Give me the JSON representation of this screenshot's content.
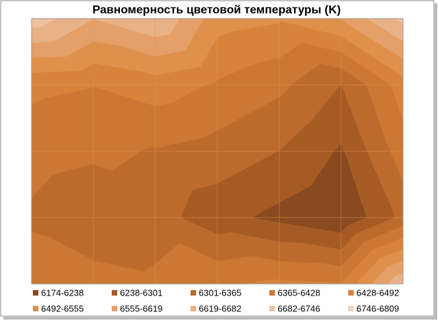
{
  "chart_data": {
    "type": "contour",
    "title": "Равномерность цветовой температуры (K)",
    "z": [
      [
        6720,
        6620,
        6680,
        6520,
        6500,
        6560,
        6700
      ],
      [
        6440,
        6430,
        6460,
        6420,
        6380,
        6300,
        6460
      ],
      [
        6400,
        6380,
        6360,
        6340,
        6300,
        6230,
        6400
      ],
      [
        6350,
        6300,
        6330,
        6260,
        6220,
        6180,
        6320
      ],
      [
        6420,
        6400,
        6380,
        6420,
        6440,
        6430,
        6680
      ]
    ],
    "grid": true,
    "series": [
      {
        "name": "6174-6238",
        "range": [
          6174,
          6238
        ],
        "color": "#8a4a20"
      },
      {
        "name": "6238-6301",
        "range": [
          6238,
          6301
        ],
        "color": "#a65b25"
      },
      {
        "name": "6301-6365",
        "range": [
          6301,
          6365
        ],
        "color": "#bd6b2c"
      },
      {
        "name": "6365-6428",
        "range": [
          6365,
          6428
        ],
        "color": "#cc7733"
      },
      {
        "name": "6428-6492",
        "range": [
          6428,
          6492
        ],
        "color": "#d8833a"
      },
      {
        "name": "6492-6555",
        "range": [
          6492,
          6555
        ],
        "color": "#df914c"
      },
      {
        "name": "6555-6619",
        "range": [
          6555,
          6619
        ],
        "color": "#e4a068"
      },
      {
        "name": "6619-6682",
        "range": [
          6619,
          6682
        ],
        "color": "#e9b186"
      },
      {
        "name": "6682-6746",
        "range": [
          6682,
          6746
        ],
        "color": "#eec0a0"
      },
      {
        "name": "6746-6809",
        "range": [
          6746,
          6809
        ],
        "color": "#f2cfb8"
      }
    ]
  }
}
